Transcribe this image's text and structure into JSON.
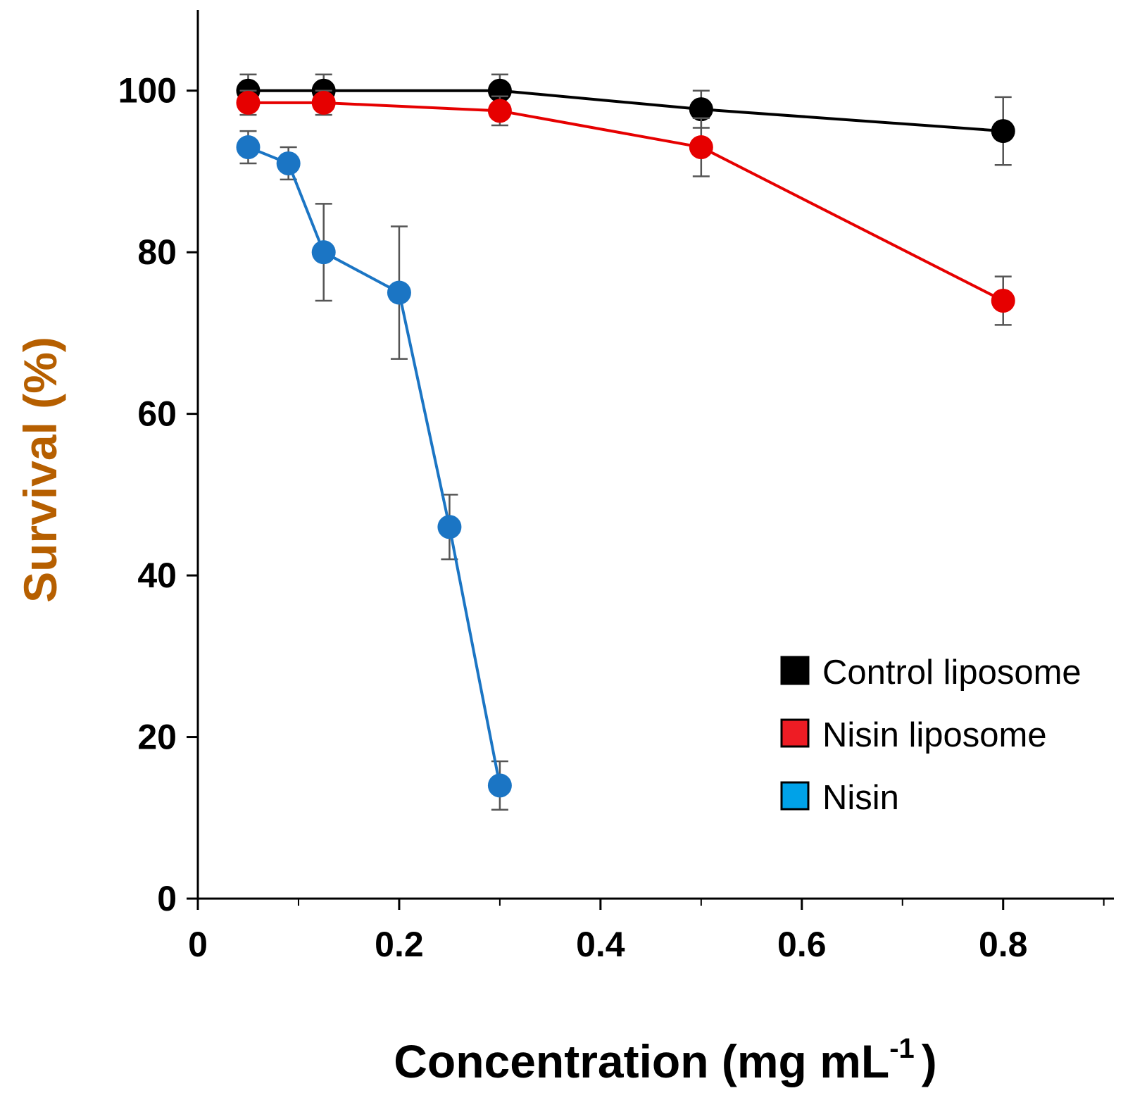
{
  "chart_data": {
    "type": "line",
    "title": "",
    "xlabel": "Concentration (mg mL",
    "xlabel_superscript": "-1",
    "xlabel_close": ")",
    "ylabel": "Survival (%)",
    "xlim": [
      0,
      0.91
    ],
    "ylim": [
      0,
      110
    ],
    "xticks": [
      0,
      0.2,
      0.4,
      0.6,
      0.8
    ],
    "xtick_labels": [
      "0",
      "0.2",
      "0.4",
      "0.6",
      "0.8"
    ],
    "xminor_ticks": [
      0.1,
      0.3,
      0.5,
      0.7,
      0.9
    ],
    "yticks": [
      0,
      20,
      40,
      60,
      80,
      100
    ],
    "ytick_labels": [
      "0",
      "20",
      "40",
      "60",
      "80",
      "100"
    ],
    "grid": false,
    "legend_position": "bottom-right",
    "series": [
      {
        "name": "Control liposome",
        "color": "#000000",
        "x": [
          0.05,
          0.125,
          0.3,
          0.5,
          0.8
        ],
        "y": [
          100,
          100,
          100,
          97.7,
          95
        ],
        "err": [
          2,
          2,
          2,
          2.3,
          4.2
        ]
      },
      {
        "name": "Nisin liposome",
        "color": "#e60000",
        "x": [
          0.05,
          0.125,
          0.3,
          0.5,
          0.8
        ],
        "y": [
          98.5,
          98.5,
          97.5,
          93,
          74
        ],
        "err": [
          1.5,
          1.5,
          1.8,
          3.6,
          3
        ]
      },
      {
        "name": "Nisin",
        "color": "#1b75c4",
        "x": [
          0.05,
          0.09,
          0.125,
          0.2,
          0.25,
          0.3
        ],
        "y": [
          93,
          91,
          80,
          75,
          46,
          14
        ],
        "err": [
          2,
          2,
          6,
          8.2,
          4,
          3
        ]
      }
    ],
    "legend_swatch_colors": [
      "#000000",
      "#ee1c24",
      "#00a2e8"
    ]
  }
}
